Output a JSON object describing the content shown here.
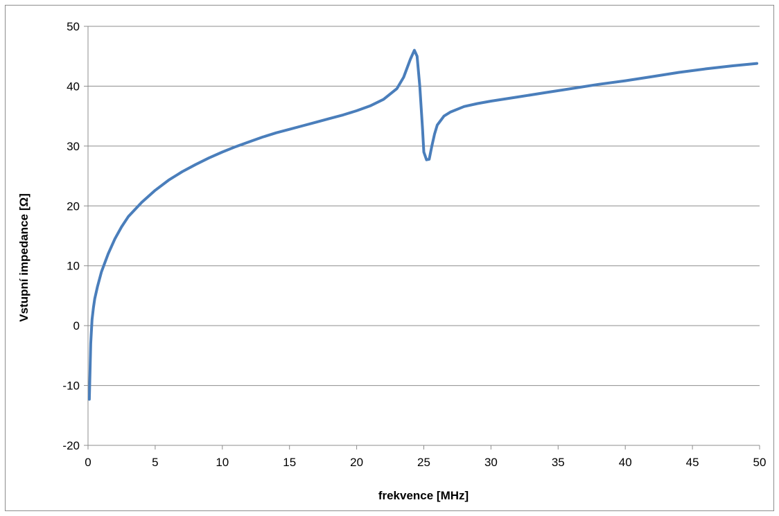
{
  "chart_data": {
    "type": "line",
    "title": "",
    "xlabel": "frekvence [MHz]",
    "ylabel": "Vstupní impedance [Ω]",
    "xlim": [
      0,
      50
    ],
    "ylim": [
      -20,
      50
    ],
    "xticks": [
      0,
      5,
      10,
      15,
      20,
      25,
      30,
      35,
      40,
      45,
      50
    ],
    "yticks": [
      -20,
      -10,
      0,
      10,
      20,
      30,
      40,
      50
    ],
    "grid": "horizontal",
    "legend": "none",
    "line_color": "#4a7ebb",
    "series": [
      {
        "x": [
          0.1,
          0.2,
          0.3,
          0.4,
          0.5,
          0.7,
          1.0,
          1.5,
          2.0,
          2.5,
          3,
          4,
          5,
          6,
          7,
          8,
          9,
          10,
          11,
          12,
          13,
          14,
          15,
          16,
          17,
          18,
          19,
          20,
          21,
          22,
          23,
          23.5,
          24.0,
          24.3,
          24.5,
          24.7,
          24.9,
          25.0,
          25.2,
          25.4,
          25.6,
          25.8,
          26,
          26.5,
          27,
          28,
          29,
          30,
          32,
          34,
          36,
          38,
          40,
          42,
          44,
          46,
          48,
          49.8
        ],
        "y": [
          -12.3,
          -3,
          1,
          3,
          4.5,
          6.5,
          9,
          12,
          14.5,
          16.5,
          18.2,
          20.6,
          22.6,
          24.3,
          25.7,
          26.9,
          28,
          29,
          29.9,
          30.7,
          31.5,
          32.2,
          32.8,
          33.4,
          34,
          34.6,
          35.2,
          35.9,
          36.7,
          37.8,
          39.6,
          41.5,
          44.5,
          46,
          45,
          40,
          33,
          29,
          27.7,
          27.8,
          30,
          32,
          33.5,
          35,
          35.7,
          36.6,
          37.1,
          37.5,
          38.2,
          38.9,
          39.6,
          40.3,
          40.9,
          41.6,
          42.3,
          42.9,
          43.4,
          43.8
        ]
      }
    ]
  }
}
